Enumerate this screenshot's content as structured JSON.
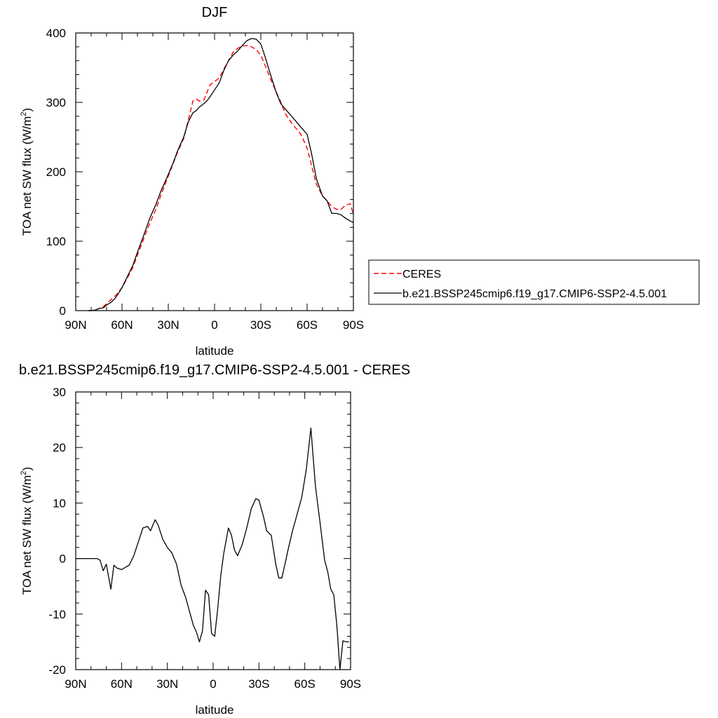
{
  "chart_data": [
    {
      "type": "line",
      "title": "DJF",
      "xlabel": "latitude",
      "ylabel_main": "TOA net SW flux (W/m",
      "ylabel_sup": "2",
      "ylabel_tail": ")",
      "xlim": [
        -90,
        90
      ],
      "ylim": [
        0,
        400
      ],
      "x_ticks": [
        -90,
        -60,
        -30,
        0,
        30,
        60,
        90
      ],
      "x_tick_labels": [
        "90N",
        "60N",
        "30N",
        "0",
        "30S",
        "60S",
        "90S"
      ],
      "y_ticks": [
        0,
        100,
        200,
        300,
        400
      ],
      "y_tick_labels": [
        "0",
        "100",
        "200",
        "300",
        "400"
      ],
      "legend_position": "right",
      "series": [
        {
          "name": "CERES",
          "color": "#ff0000",
          "dash": "dashed",
          "x": [
            -82,
            -80,
            -77,
            -75,
            -72,
            -70,
            -67,
            -64,
            -60,
            -57,
            -53,
            -50,
            -46,
            -42,
            -38,
            -35,
            -31,
            -27,
            -24,
            -20,
            -17,
            -14,
            -12,
            -10,
            -7,
            -5,
            -3,
            0,
            3,
            6,
            9,
            12,
            15,
            18,
            21,
            24,
            27,
            30,
            33,
            36,
            40,
            43,
            46,
            50,
            53,
            56,
            60,
            63,
            66,
            70,
            73,
            76,
            79,
            82,
            85,
            88,
            90
          ],
          "y": [
            0,
            0,
            1,
            3,
            6,
            10,
            16,
            22,
            33,
            45,
            62,
            80,
            103,
            126,
            146,
            165,
            188,
            211,
            228,
            248,
            275,
            302,
            305,
            302,
            303,
            314,
            325,
            330,
            335,
            348,
            360,
            372,
            378,
            381,
            382,
            380,
            376,
            368,
            352,
            335,
            315,
            300,
            283,
            270,
            262,
            254,
            234,
            208,
            182,
            165,
            158,
            150,
            146,
            146,
            152,
            154,
            138
          ]
        },
        {
          "name": "b.e21.BSSP245cmip6.f19_g17.CMIP6-SSP2-4.5.001",
          "color": "#000000",
          "dash": "solid",
          "x": [
            -82,
            -80,
            -77,
            -75,
            -72,
            -70,
            -67,
            -64,
            -60,
            -57,
            -53,
            -50,
            -46,
            -42,
            -38,
            -35,
            -31,
            -27,
            -24,
            -20,
            -17,
            -14,
            -12,
            -10,
            -7,
            -5,
            -3,
            0,
            3,
            6,
            9,
            12,
            15,
            18,
            21,
            24,
            27,
            30,
            33,
            36,
            40,
            43,
            46,
            50,
            53,
            56,
            60,
            63,
            66,
            70,
            73,
            76,
            79,
            82,
            85,
            88,
            90
          ],
          "y": [
            0,
            0,
            1,
            3,
            4,
            8,
            12,
            19,
            33,
            47,
            65,
            84,
            108,
            133,
            153,
            171,
            191,
            212,
            230,
            250,
            272,
            285,
            288,
            293,
            298,
            302,
            308,
            318,
            328,
            346,
            360,
            368,
            374,
            382,
            389,
            392,
            391,
            384,
            364,
            342,
            314,
            298,
            290,
            280,
            272,
            264,
            254,
            225,
            190,
            165,
            158,
            140,
            140,
            138,
            133,
            129,
            127
          ]
        }
      ]
    },
    {
      "type": "line",
      "title": "b.e21.BSSP245cmip6.f19_g17.CMIP6-SSP2-4.5.001 - CERES",
      "xlabel": "latitude",
      "ylabel_main": "TOA net SW flux (W/m",
      "ylabel_sup": "2",
      "ylabel_tail": ")",
      "xlim": [
        -90,
        90
      ],
      "ylim": [
        -20,
        30
      ],
      "x_ticks": [
        -90,
        -60,
        -30,
        0,
        30,
        60,
        90
      ],
      "x_tick_labels": [
        "90N",
        "60N",
        "30N",
        "0",
        "30S",
        "60S",
        "90S"
      ],
      "y_ticks": [
        -20,
        -10,
        0,
        10,
        20,
        30
      ],
      "y_tick_labels": [
        "-20",
        "-10",
        "0",
        "10",
        "20",
        "30"
      ],
      "series": [
        {
          "color": "#000000",
          "dash": "solid",
          "x": [
            -90,
            -87,
            -84,
            -81,
            -78,
            -76,
            -74,
            -72,
            -70,
            -67,
            -65,
            -63,
            -60,
            -57,
            -55,
            -52,
            -49,
            -46,
            -43,
            -41,
            -38,
            -36,
            -33,
            -30,
            -27,
            -24,
            -21,
            -18,
            -15,
            -13,
            -11,
            -9,
            -7,
            -5,
            -3,
            -1,
            1,
            3,
            5,
            7,
            10,
            12,
            14,
            16,
            19,
            22,
            25,
            28,
            30,
            33,
            35,
            38,
            41,
            43,
            45,
            47,
            49,
            52,
            55,
            58,
            61,
            64,
            67,
            70,
            73,
            75,
            77,
            79,
            81,
            83,
            85,
            87,
            89
          ],
          "y": [
            0,
            0,
            0,
            0,
            0,
            0,
            -0.3,
            -2.2,
            -1,
            -5.5,
            -1.2,
            -1.7,
            -2,
            -1.5,
            -1.2,
            0.5,
            3,
            5.5,
            5.8,
            5,
            7,
            6,
            3.5,
            2,
            1,
            -1,
            -4.8,
            -7,
            -10,
            -12,
            -13.2,
            -15,
            -13,
            -5.7,
            -6.5,
            -13.5,
            -14,
            -9,
            -3,
            1,
            5.5,
            4.2,
            1.5,
            0.5,
            2.5,
            5.5,
            9,
            10.8,
            10.5,
            7.5,
            5,
            4.2,
            -1,
            -3.5,
            -3.5,
            -1,
            1.5,
            5,
            8,
            11,
            16,
            23.5,
            13,
            6.5,
            -0.3,
            -2.3,
            -5.5,
            -6.5,
            -12,
            -20,
            -14.8,
            -15,
            -15
          ]
        }
      ]
    }
  ]
}
